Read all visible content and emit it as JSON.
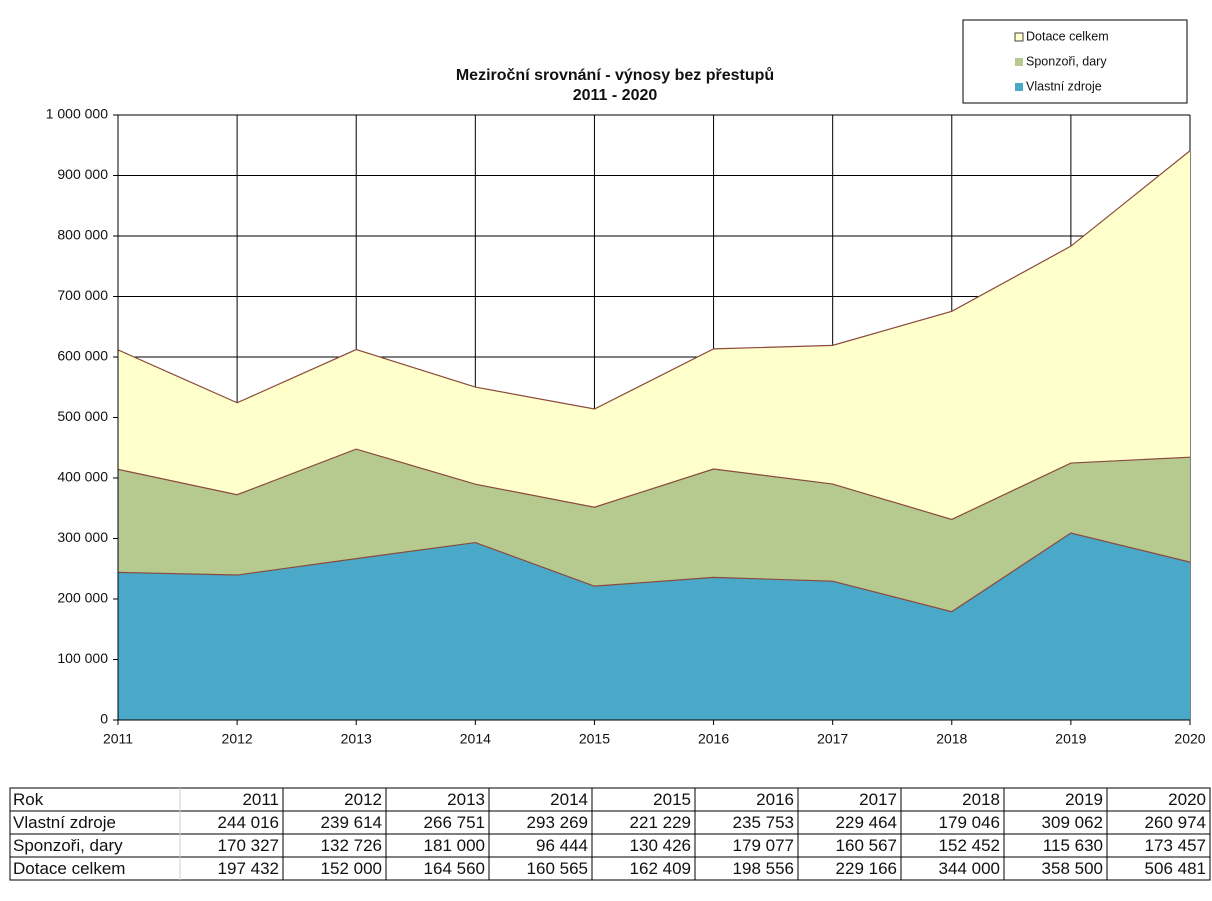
{
  "chart_data": {
    "type": "stacked_area",
    "title": "Meziroční srovnání - výnosy bez přestupů",
    "subtitle": "2011 - 2020",
    "categories": [
      "2011",
      "2012",
      "2013",
      "2014",
      "2015",
      "2016",
      "2017",
      "2018",
      "2019",
      "2020"
    ],
    "series": [
      {
        "name": "Vlastní zdroje",
        "color": "#4aa8c8",
        "values": [
          244016,
          239614,
          266751,
          293269,
          221229,
          235753,
          229464,
          179046,
          309062,
          260974
        ],
        "value_labels": [
          "244 016",
          "239 614",
          "266 751",
          "293 269",
          "221 229",
          "235 753",
          "229 464",
          "179 046",
          "309 062",
          "260 974"
        ]
      },
      {
        "name": "Sponzoři, dary",
        "color": "#b6ca90",
        "values": [
          170327,
          132726,
          181000,
          96444,
          130426,
          179077,
          160567,
          152452,
          115630,
          173457
        ],
        "value_labels": [
          "170 327",
          "132 726",
          "181 000",
          "96 444",
          "130 426",
          "179 077",
          "160 567",
          "152 452",
          "115 630",
          "173 457"
        ]
      },
      {
        "name": "Dotace celkem",
        "color": "#ffffcc",
        "values": [
          197432,
          152000,
          164560,
          160565,
          162409,
          198556,
          229166,
          344000,
          358500,
          506481
        ],
        "value_labels": [
          "197 432",
          "152 000",
          "164 560",
          "160 565",
          "162 409",
          "198 556",
          "229 166",
          "344 000",
          "358 500",
          "506 481"
        ]
      }
    ],
    "ylim": [
      0,
      1000000
    ],
    "yticks": [
      0,
      {
        "value": 100000,
        "label": "100 000"
      },
      {
        "value": 200000,
        "label": "200 000"
      },
      {
        "value": 300000,
        "label": "300 000"
      },
      {
        "value": 400000,
        "label": "400 000"
      },
      {
        "value": 500000,
        "label": "500 000"
      },
      {
        "value": 600000,
        "label": "600 000"
      },
      {
        "value": 700000,
        "label": "700 000"
      },
      {
        "value": 800000,
        "label": "800 000"
      },
      {
        "value": 900000,
        "label": "900 000"
      },
      {
        "value": 1000000,
        "label": "1 000 000"
      }
    ],
    "grid": true,
    "legend": "top-right",
    "table_header": "Rok"
  }
}
